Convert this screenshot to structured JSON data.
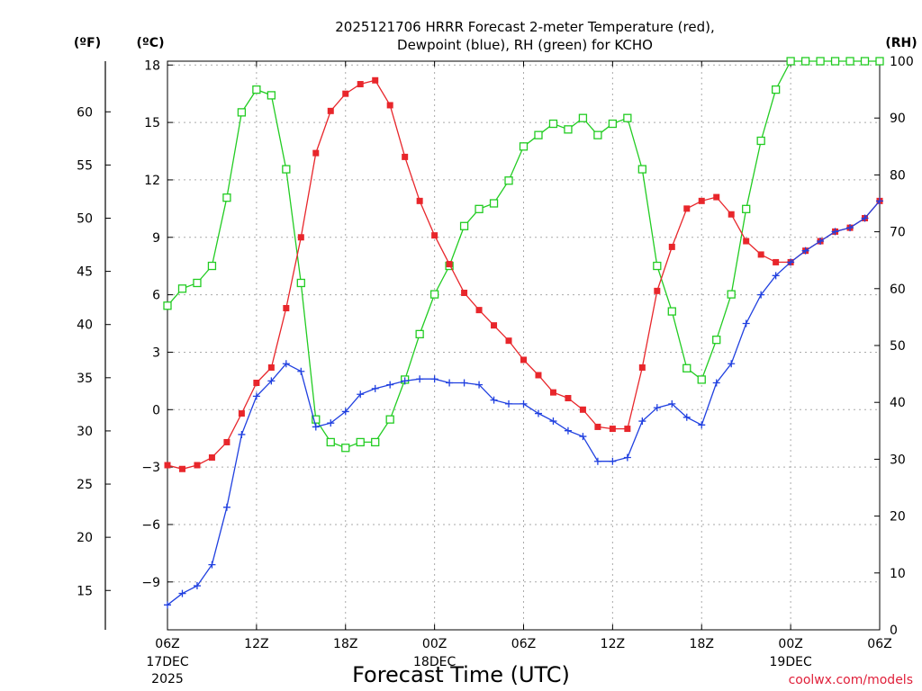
{
  "chart_data": {
    "type": "line",
    "title_line1": "2025121706 HRRR Forecast 2-meter Temperature (red),",
    "title_line2": "Dewpoint (blue), RH (green) for KCHO",
    "xlabel": "Forecast Time (UTC)",
    "units": {
      "fahrenheit": "(ºF)",
      "celsius": "(ºC)",
      "rh": "(RH)"
    },
    "credit": "coolwx.com/models",
    "x_range_hours": [
      0,
      48
    ],
    "x_ticks": [
      {
        "h": 0,
        "label": "06Z",
        "sub1": "17DEC",
        "sub2": "2025"
      },
      {
        "h": 6,
        "label": "12Z"
      },
      {
        "h": 12,
        "label": "18Z"
      },
      {
        "h": 18,
        "label": "00Z",
        "sub1": "18DEC"
      },
      {
        "h": 24,
        "label": "06Z"
      },
      {
        "h": 30,
        "label": "12Z"
      },
      {
        "h": 36,
        "label": "18Z"
      },
      {
        "h": 42,
        "label": "00Z",
        "sub1": "19DEC"
      },
      {
        "h": 48,
        "label": "06Z"
      }
    ],
    "celsius_axis": {
      "range": [
        -11.5,
        18.2
      ],
      "ticks": [
        "18",
        "15",
        "12",
        "9",
        "6",
        "3",
        "0",
        "−3",
        "−6",
        "−9"
      ],
      "tick_values": [
        18,
        15,
        12,
        9,
        6,
        3,
        0,
        -3,
        -6,
        -9
      ]
    },
    "fahrenheit_axis": {
      "ticks": [
        "60",
        "55",
        "50",
        "45",
        "40",
        "35",
        "30",
        "25",
        "20",
        "15"
      ],
      "tick_values": [
        60,
        55,
        50,
        45,
        40,
        35,
        30,
        25,
        20,
        15
      ]
    },
    "rh_axis": {
      "range": [
        0,
        100
      ],
      "ticks": [
        "100",
        "90",
        "80",
        "70",
        "60",
        "50",
        "40",
        "30",
        "20",
        "10",
        "0"
      ],
      "tick_values": [
        100,
        90,
        80,
        70,
        60,
        50,
        40,
        30,
        20,
        10,
        0
      ]
    },
    "grid": true,
    "series": [
      {
        "name": "Temperature",
        "color": "#e8262b",
        "marker": "filled-square",
        "axis": "celsius",
        "values": [
          -2.9,
          -3.1,
          -2.9,
          -2.5,
          -1.7,
          -0.2,
          1.4,
          2.2,
          5.3,
          9.0,
          13.4,
          15.6,
          16.5,
          17.0,
          17.2,
          15.9,
          13.2,
          10.9,
          9.1,
          7.6,
          6.1,
          5.2,
          4.4,
          3.6,
          2.6,
          1.8,
          0.9,
          0.6,
          0.0,
          -0.9,
          -1.0,
          -1.0,
          2.2,
          6.2,
          8.5,
          10.5,
          10.9,
          11.1,
          10.2,
          8.8,
          8.1,
          7.7,
          7.7,
          8.3,
          8.8,
          9.3,
          9.5,
          10.0,
          10.9
        ]
      },
      {
        "name": "Dewpoint",
        "color": "#2040e0",
        "marker": "plus",
        "axis": "celsius",
        "values": [
          -10.2,
          -9.6,
          -9.2,
          -8.1,
          -5.1,
          -1.3,
          0.7,
          1.5,
          2.4,
          2.0,
          -0.9,
          -0.7,
          -0.1,
          0.8,
          1.1,
          1.3,
          1.5,
          1.6,
          1.6,
          1.4,
          1.4,
          1.3,
          0.5,
          0.3,
          0.3,
          -0.2,
          -0.6,
          -1.1,
          -1.4,
          -2.7,
          -2.7,
          -2.5,
          -0.6,
          0.1,
          0.3,
          -0.4,
          -0.8,
          1.4,
          2.4,
          4.5,
          6.0,
          7.0,
          7.7,
          8.3,
          8.8,
          9.3,
          9.5,
          10.0,
          10.9
        ]
      },
      {
        "name": "RH",
        "color": "#22cc22",
        "marker": "open-square",
        "axis": "rh",
        "values": [
          57,
          60,
          61,
          64,
          76,
          91,
          95,
          94,
          81,
          61,
          37,
          33,
          32,
          33,
          33,
          37,
          44,
          52,
          59,
          64,
          71,
          74,
          75,
          79,
          85,
          87,
          89,
          88,
          90,
          87,
          89,
          90,
          81,
          64,
          56,
          46,
          44,
          51,
          59,
          74,
          86,
          95,
          100,
          100,
          100,
          100,
          100,
          100,
          100
        ]
      }
    ]
  }
}
